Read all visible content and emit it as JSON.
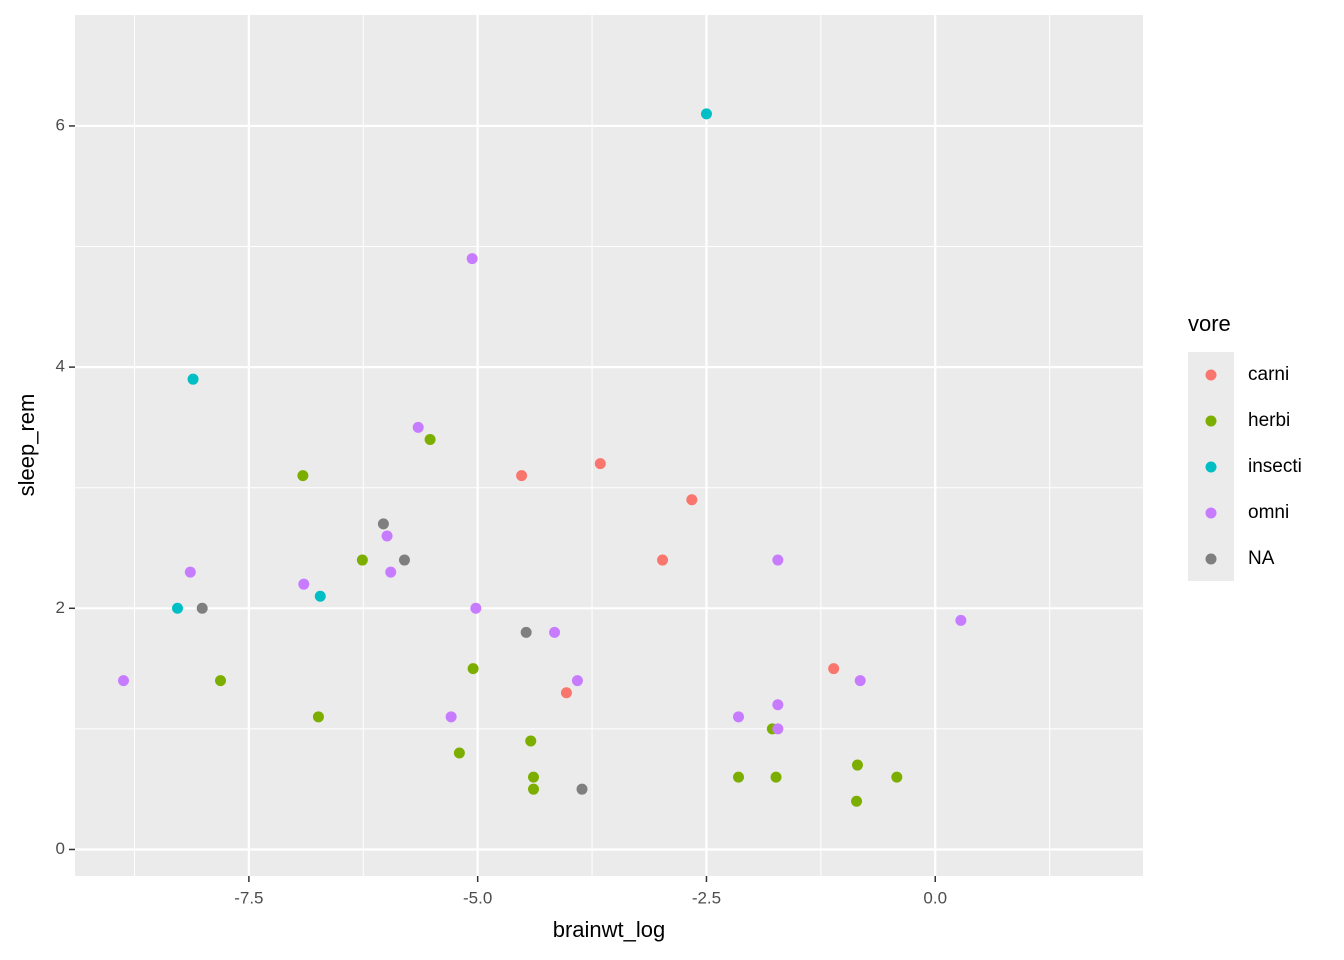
{
  "chart_data": {
    "type": "scatter",
    "x_label": "brainwt_log",
    "y_label": "sleep_rem",
    "legend_title": "vore",
    "legend_position": "right",
    "grid": true,
    "xlim": [
      -9.4,
      2.27
    ],
    "ylim": [
      -0.22,
      6.92
    ],
    "xticks": [
      -7.5,
      {
        "value": -5,
        "label": "-5.0"
      },
      -2.5,
      {
        "value": 0,
        "label": "0.0"
      }
    ],
    "yticks": [
      0,
      2,
      4,
      6
    ],
    "x_minor_ticks": [
      -8.75,
      -6.25,
      -3.75,
      -1.25,
      1.25
    ],
    "y_minor_ticks": [
      1,
      3,
      5
    ],
    "series": [
      {
        "name": "carni",
        "color": "#F8766D",
        "x": [
          -4.52,
          -3.66,
          -2.66,
          -2.98,
          -1.11,
          -4.03
        ],
        "y": [
          3.1,
          3.2,
          2.9,
          2.4,
          1.5,
          1.3
        ]
      },
      {
        "name": "herbi",
        "color": "#7CAE00",
        "x": [
          -6.91,
          -5.52,
          -6.26,
          -7.81,
          -6.74,
          -5.05,
          -5.2,
          -4.42,
          -4.39,
          -4.39,
          -2.15,
          -1.78,
          -1.74,
          -0.85,
          -0.86,
          -0.42
        ],
        "y": [
          3.1,
          3.4,
          2.4,
          1.4,
          1.1,
          1.5,
          0.8,
          0.9,
          0.6,
          0.5,
          0.6,
          1.0,
          0.6,
          0.7,
          0.4,
          0.6
        ]
      },
      {
        "name": "insecti",
        "color": "#00BFC4",
        "x": [
          -2.5,
          -8.11,
          -8.28,
          -6.72
        ],
        "y": [
          6.1,
          3.9,
          2.0,
          2.1
        ]
      },
      {
        "name": "omni",
        "color": "#C77CFF",
        "x": [
          -5.06,
          -5.65,
          -5.99,
          -5.95,
          -8.14,
          -6.9,
          -5.02,
          -4.16,
          -3.91,
          -5.29,
          -8.87,
          -1.72,
          0.28,
          -0.82,
          -1.72,
          -2.15,
          -1.72
        ],
        "y": [
          4.9,
          3.5,
          2.6,
          2.3,
          2.3,
          2.2,
          2.0,
          1.8,
          1.4,
          1.1,
          1.4,
          2.4,
          1.9,
          1.4,
          1.2,
          1.1,
          1.0
        ]
      },
      {
        "name": "NA",
        "color": "#7F7F7F",
        "x": [
          -6.03,
          -5.8,
          -8.01,
          -4.47,
          -3.86
        ],
        "y": [
          2.7,
          2.4,
          2.0,
          1.8,
          0.5
        ]
      }
    ]
  }
}
